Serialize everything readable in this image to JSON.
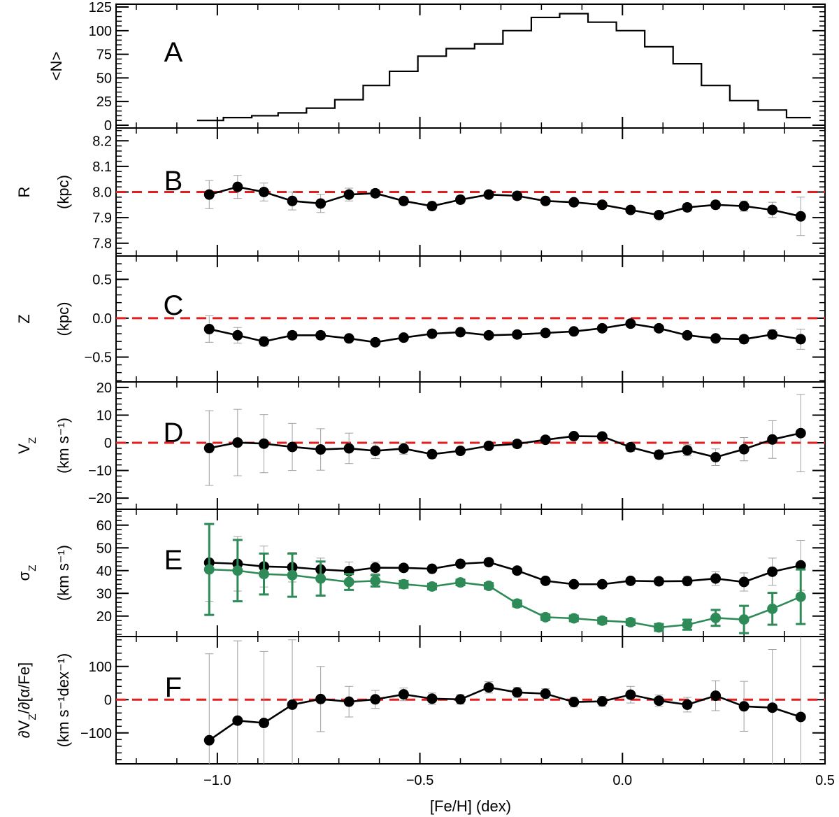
{
  "chart_data": {
    "type": "line",
    "layout": "stacked-panels",
    "shared_x": {
      "label": "[Fe/H] (dex)",
      "range": [
        -1.25,
        0.5
      ],
      "ticks": [
        -1.0,
        -0.5,
        0.0,
        0.5
      ],
      "tick_labels": [
        "−1.0",
        "−0.5",
        "0.0",
        "0.5"
      ],
      "x": [
        -1.02,
        -0.95,
        -0.885,
        -0.815,
        -0.745,
        -0.675,
        -0.61,
        -0.54,
        -0.47,
        -0.4,
        -0.33,
        -0.26,
        -0.19,
        -0.12,
        -0.05,
        0.02,
        0.09,
        0.16,
        0.23,
        0.3,
        0.37,
        0.44
      ]
    },
    "panels": [
      {
        "letter": "A",
        "type": "step",
        "ylabel": "<N>",
        "yunits": "",
        "ylim": [
          -3,
          128
        ],
        "yticks": [
          0,
          25,
          50,
          75,
          100,
          125
        ],
        "ytick_labels": [
          "0",
          "25",
          "50",
          "75",
          "100",
          "125"
        ],
        "series": [
          {
            "edges": [
              -1.05,
              -0.985,
              -0.915,
              -0.85,
              -0.78,
              -0.71,
              -0.64,
              -0.575,
              -0.505,
              -0.435,
              -0.365,
              -0.295,
              -0.225,
              -0.155,
              -0.085,
              -0.015,
              0.055,
              0.125,
              0.195,
              0.265,
              0.335,
              0.405,
              0.465
            ],
            "values": [
              5,
              8,
              10,
              13,
              18,
              27,
              42,
              57,
              73,
              81,
              86,
              100,
              114,
              118,
              109,
              100,
              83,
              65,
              42,
              26,
              16,
              8
            ]
          }
        ]
      },
      {
        "letter": "B",
        "type": "line",
        "ylabel": "R",
        "yunits": "(kpc)",
        "ylim": [
          7.75,
          8.25
        ],
        "yticks": [
          7.8,
          7.9,
          8.0,
          8.1,
          8.2
        ],
        "ytick_labels": [
          "7.8",
          "7.9",
          "8.0",
          "8.1",
          "8.2"
        ],
        "reference_line": 8.0,
        "series": [
          {
            "color": "#000000",
            "values": [
              7.99,
              8.02,
              8.0,
              7.965,
              7.955,
              7.99,
              7.995,
              7.965,
              7.945,
              7.97,
              7.99,
              7.985,
              7.965,
              7.96,
              7.95,
              7.93,
              7.91,
              7.94,
              7.95,
              7.945,
              7.93,
              7.905
            ],
            "errors": [
              0.055,
              0.045,
              0.035,
              0.035,
              0.035,
              0.025,
              0.015,
              0.015,
              0.015,
              0.015,
              0.01,
              0.015,
              0.01,
              0.01,
              0.01,
              0.01,
              0.01,
              0.015,
              0.015,
              0.02,
              0.03,
              0.075
            ]
          }
        ]
      },
      {
        "letter": "C",
        "type": "line",
        "ylabel": "Z",
        "yunits": "(kpc)",
        "ylim": [
          -0.82,
          0.8
        ],
        "yticks": [
          -0.5,
          0.0,
          0.5
        ],
        "ytick_labels": [
          "−0.5",
          "0.0",
          "0.5"
        ],
        "reference_line": 0.0,
        "series": [
          {
            "color": "#000000",
            "values": [
              -0.14,
              -0.22,
              -0.3,
              -0.22,
              -0.22,
              -0.26,
              -0.31,
              -0.25,
              -0.2,
              -0.18,
              -0.22,
              -0.21,
              -0.19,
              -0.17,
              -0.13,
              -0.07,
              -0.13,
              -0.22,
              -0.26,
              -0.27,
              -0.21,
              -0.27
            ],
            "errors": [
              0.17,
              0.1,
              0.06,
              0.05,
              0.05,
              0.04,
              0.03,
              0.03,
              0.03,
              0.03,
              0.03,
              0.03,
              0.03,
              0.03,
              0.03,
              0.02,
              0.03,
              0.03,
              0.04,
              0.05,
              0.06,
              0.13
            ]
          }
        ]
      },
      {
        "letter": "D",
        "type": "line",
        "ylabel": "V_Z",
        "yunits": "(km s⁻¹)",
        "ylim": [
          -24,
          22
        ],
        "yticks": [
          -20,
          -10,
          0,
          10,
          20
        ],
        "ytick_labels": [
          "−20",
          "−10",
          "0",
          "10",
          "20"
        ],
        "reference_line": 0,
        "series": [
          {
            "color": "#000000",
            "values": [
              -1.9,
              0.1,
              -0.3,
              -1.5,
              -2.4,
              -2.0,
              -2.9,
              -2.1,
              -4.1,
              -2.9,
              -1.1,
              -0.4,
              1.1,
              2.4,
              2.3,
              -1.6,
              -4.3,
              -2.7,
              -5.2,
              -2.3,
              1.2,
              3.5
            ],
            "errors": [
              13.5,
              12.0,
              10.5,
              8.5,
              7.5,
              5.5,
              2.8,
              2.0,
              1.5,
              1.3,
              1.1,
              1.3,
              1.1,
              1.1,
              1.0,
              1.5,
              1.5,
              2.0,
              3.0,
              4.2,
              6.8,
              14.0
            ]
          }
        ]
      },
      {
        "letter": "E",
        "type": "line",
        "ylabel": "σ_Z",
        "yunits": "(km s⁻¹)",
        "ylim": [
          11,
          67
        ],
        "yticks": [
          20,
          30,
          40,
          50,
          60
        ],
        "ytick_labels": [
          "20",
          "30",
          "40",
          "50",
          "60"
        ],
        "series": [
          {
            "color": "#000000",
            "values": [
              43.5,
              43.0,
              41.8,
              41.5,
              40.5,
              39.8,
              41.3,
              41.2,
              40.8,
              43.0,
              43.7,
              40.0,
              35.5,
              34.0,
              34.0,
              35.5,
              35.3,
              35.4,
              36.5,
              35.0,
              39.5,
              42.3
            ],
            "errors": [
              17.0,
              12.0,
              9.0,
              6.5,
              5.0,
              4.0,
              2.5,
              1.5,
              1.2,
              1.2,
              1.0,
              1.2,
              1.0,
              1.0,
              1.0,
              1.2,
              1.5,
              2.0,
              3.0,
              4.0,
              6.0,
              11.0
            ]
          },
          {
            "color": "#2e8b57",
            "values": [
              40.5,
              40.0,
              38.5,
              38.0,
              36.5,
              35.0,
              35.5,
              34.0,
              33.0,
              34.8,
              33.3,
              25.5,
              19.5,
              19.0,
              18.0,
              17.3,
              15.0,
              16.2,
              19.2,
              18.5,
              23.2,
              28.5
            ],
            "errors": [
              20.0,
              13.5,
              9.0,
              9.5,
              7.5,
              3.5,
              2.5,
              1.5,
              1.2,
              1.2,
              1.2,
              1.3,
              1.2,
              1.2,
              1.2,
              1.2,
              1.5,
              2.2,
              3.5,
              6.0,
              7.0,
              12.0
            ]
          }
        ]
      },
      {
        "letter": "F",
        "type": "line",
        "ylabel": "∂V_Z/∂[α/Fe]",
        "yunits": "(km s⁻¹dex⁻¹)",
        "ylim": [
          -193,
          190
        ],
        "yticks": [
          -100,
          0,
          100
        ],
        "ytick_labels": [
          "−100",
          "0",
          "100"
        ],
        "reference_line": 0,
        "series": [
          {
            "color": "#000000",
            "values": [
              -122,
              -63,
              -70,
              -15,
              2,
              -6,
              1,
              16,
              3,
              1,
              37,
              22,
              18,
              -7,
              -5,
              15,
              -3,
              -15,
              12,
              -20,
              -24,
              -52
            ],
            "errors": [
              260,
              240,
              215,
              195,
              98,
              46,
              27,
              19,
              17,
              14,
              17,
              15,
              15,
              15,
              15,
              25,
              17,
              22,
              45,
              75,
              175,
              260
            ]
          }
        ]
      }
    ]
  }
}
